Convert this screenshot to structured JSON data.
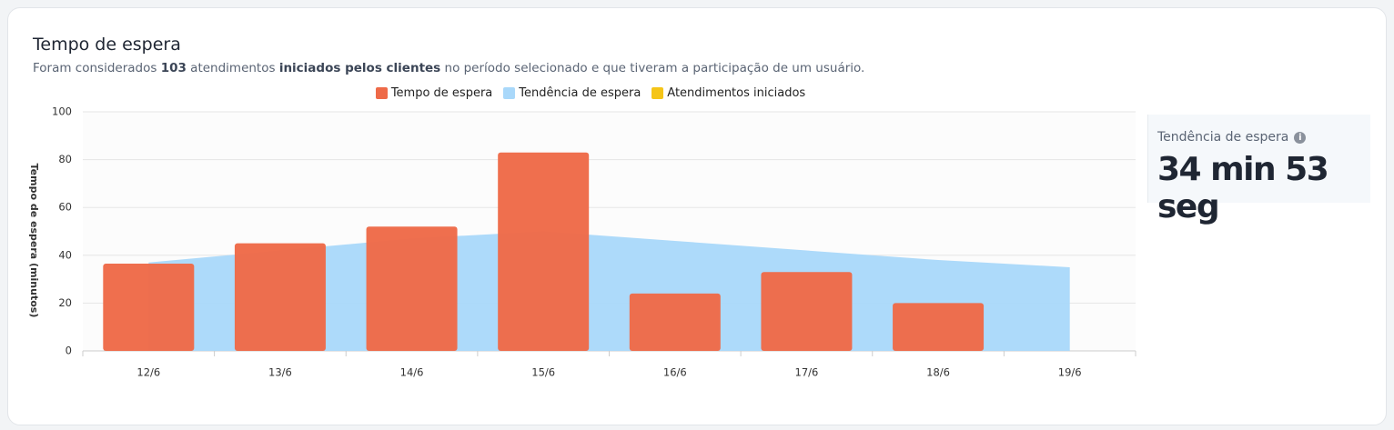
{
  "chart_data": {
    "type": "bar",
    "title": "Tempo de espera",
    "subtitle": [
      {
        "text": "Foram considerados ",
        "bold": false
      },
      {
        "text": "103",
        "bold": true
      },
      {
        "text": " atendimentos ",
        "bold": false
      },
      {
        "text": "iniciados pelos clientes",
        "bold": true
      },
      {
        "text": " no período selecionado e que tiveram a participação de um usuário.",
        "bold": false
      }
    ],
    "y_label": "Tempo de espera (minutos)",
    "categories": [
      "12/6",
      "13/6",
      "14/6",
      "15/6",
      "16/6",
      "17/6",
      "18/6",
      "19/6"
    ],
    "series": [
      {
        "name": "Tempo de espera",
        "color": "#ee6a48",
        "type": "bar",
        "values": [
          36.5,
          45,
          52,
          83,
          24,
          33,
          20,
          null
        ]
      },
      {
        "name": "Tendência de espera",
        "color": "#a9d8fa",
        "type": "area",
        "values": [
          37,
          42,
          47,
          50,
          46,
          42,
          38,
          35
        ]
      },
      {
        "name": "Atendimentos iniciados",
        "color": "#f5c518",
        "type": "line",
        "values": [
          null,
          null,
          null,
          null,
          null,
          null,
          null,
          null
        ]
      }
    ],
    "ylim": [
      0,
      100
    ],
    "yticks": [
      0,
      20,
      40,
      60,
      80,
      100
    ],
    "grid": true,
    "legend": "top"
  },
  "kpi": {
    "label": "Tendência de espera",
    "value": "34 min 53 seg"
  }
}
